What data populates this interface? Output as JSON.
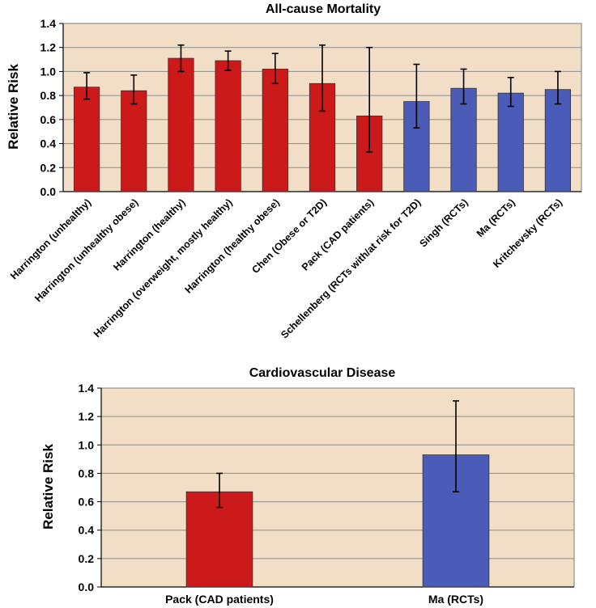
{
  "chart_data": [
    {
      "type": "bar",
      "title": "All-cause Mortality",
      "ylabel": "Relative Risk",
      "xlabel": "",
      "ylim": [
        0,
        1.4
      ],
      "yticks": [
        0.0,
        0.2,
        0.4,
        0.6,
        0.8,
        1.0,
        1.2,
        1.4
      ],
      "ytick_labels": [
        "0.0",
        "0.2",
        "0.4",
        "0.6",
        "0.8",
        "1.0",
        "1.2",
        "1.4"
      ],
      "grid": true,
      "background": "#f2dec6",
      "categories": [
        "Harrington (unhealthy)",
        "Harrington (unhealthy obese)",
        "Harrington (healthy)",
        "Harrington (overweight, mostly healthy)",
        "Harrington (healthy obese)",
        "Chen (Obese or T2D)",
        "Pack (CAD patients)",
        "Schellenberg (RCTs with/at risk for T2D)",
        "Singh (RCTs)",
        "Ma (RCTs)",
        "Kritchevsky (RCTs)"
      ],
      "values": [
        0.87,
        0.84,
        1.11,
        1.09,
        1.02,
        0.9,
        0.63,
        0.75,
        0.86,
        0.82,
        0.85
      ],
      "error_low": [
        0.77,
        0.73,
        1.0,
        1.01,
        0.9,
        0.67,
        0.33,
        0.53,
        0.73,
        0.71,
        0.73
      ],
      "error_high": [
        0.99,
        0.97,
        1.22,
        1.17,
        1.15,
        1.22,
        1.2,
        1.06,
        1.02,
        0.95,
        1.0
      ],
      "bar_colors": [
        "#cc1a1a",
        "#cc1a1a",
        "#cc1a1a",
        "#cc1a1a",
        "#cc1a1a",
        "#cc1a1a",
        "#cc1a1a",
        "#4a5bb8",
        "#4a5bb8",
        "#4a5bb8",
        "#4a5bb8"
      ]
    },
    {
      "type": "bar",
      "title": "Cardiovascular Disease",
      "ylabel": "Relative Risk",
      "xlabel": "",
      "ylim": [
        0,
        1.4
      ],
      "yticks": [
        0.0,
        0.2,
        0.4,
        0.6,
        0.8,
        1.0,
        1.2,
        1.4
      ],
      "ytick_labels": [
        "0.0",
        "0.2",
        "0.4",
        "0.6",
        "0.8",
        "1.0",
        "1.2",
        "1.4"
      ],
      "grid": true,
      "background": "#f2dec6",
      "categories": [
        "Pack (CAD patients)",
        "Ma (RCTs)"
      ],
      "values": [
        0.67,
        0.93
      ],
      "error_low": [
        0.56,
        0.67
      ],
      "error_high": [
        0.8,
        1.31
      ],
      "bar_colors": [
        "#cc1a1a",
        "#4a5bb8"
      ]
    }
  ]
}
